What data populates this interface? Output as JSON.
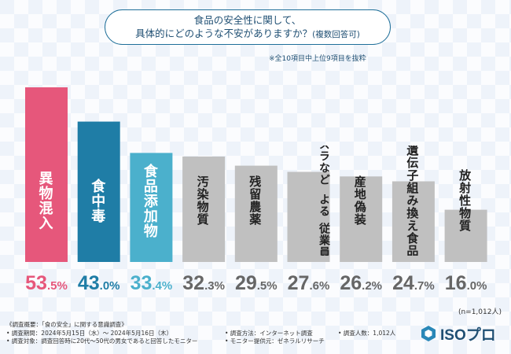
{
  "header": {
    "question_line1": "食品の安全性に関して、",
    "question_line2": "具体的にどのような不安がありますか？",
    "question_note": "(複数回答可)",
    "subnote": "※全10項目中上位9項目を抜粋"
  },
  "chart_data": {
    "type": "bar",
    "categories": [
      "異物混入",
      "食中毒",
      "食品添加物",
      "汚染物質",
      "残留農薬",
      "従業員・客によるイタズラなど",
      "産地偽装",
      "遺伝子組み換え食品",
      "放射性物質"
    ],
    "category_lines": [
      [
        "異物混入"
      ],
      [
        "食中毒"
      ],
      [
        "食品添加物"
      ],
      [
        "汚染物質"
      ],
      [
        "残留農薬"
      ],
      [
        "従業員・客に",
        "よる",
        "イタズラなど"
      ],
      [
        "産地偽装"
      ],
      [
        "遺伝子組み換え食品"
      ],
      [
        "放射性物質"
      ]
    ],
    "values": [
      53.5,
      43.0,
      33.4,
      32.3,
      29.5,
      27.6,
      26.2,
      24.7,
      16.0
    ],
    "value_labels": [
      {
        "int": "53",
        "dec": ".5",
        "unit": "%"
      },
      {
        "int": "43",
        "dec": ".0",
        "unit": "%"
      },
      {
        "int": "33",
        "dec": ".4",
        "unit": "%"
      },
      {
        "int": "32",
        "dec": ".3",
        "unit": "%"
      },
      {
        "int": "29",
        "dec": ".5",
        "unit": "%"
      },
      {
        "int": "27",
        "dec": ".6",
        "unit": "%"
      },
      {
        "int": "26",
        "dec": ".2",
        "unit": "%"
      },
      {
        "int": "24",
        "dec": ".7",
        "unit": "%"
      },
      {
        "int": "16",
        "dec": ".0",
        "unit": "%"
      }
    ],
    "bar_colors": [
      "#e6577b",
      "#1f7da6",
      "#4bb0cc",
      "#c0c0c0",
      "#c0c0c0",
      "#c0c0c0",
      "#c0c0c0",
      "#c0c0c0",
      "#c0c0c0"
    ],
    "label_colors": [
      "#e6577b",
      "#1f7da6",
      "#4bb0cc",
      "#666666",
      "#666666",
      "#666666",
      "#666666",
      "#666666",
      "#666666"
    ],
    "ylim": [
      0,
      60
    ]
  },
  "sample_size": "(n=1,012人)",
  "footer": {
    "survey_title": "《調査概要：「食の安全」に関する意識調査》",
    "period": "• 調査期間：2024年5月15日（水）～ 2024年5月16日（木）",
    "target": "• 調査対象：調査回答時に20代～50代の男女であると回答したモニター",
    "method": "• 調査方法：インターネット調査",
    "respondents": "• 調査人数：1,012人",
    "provider": "• モニター提供元：ゼネラルリサーチ"
  },
  "logo": {
    "text": "ISOプロ",
    "icon": "hexagon-logo-icon",
    "color": "#1f4f73"
  }
}
